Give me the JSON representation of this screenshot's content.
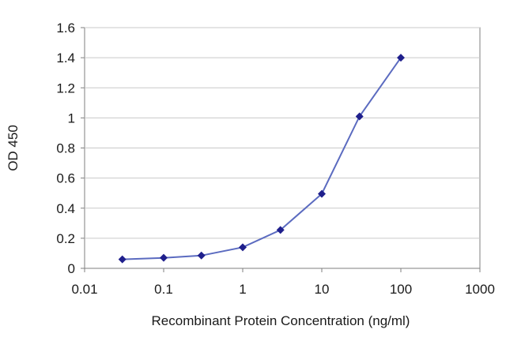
{
  "chart_data": {
    "type": "line",
    "title": "",
    "xlabel": "Recombinant Protein Concentration (ng/ml)",
    "ylabel": "OD 450",
    "x_scale": "log",
    "xlim": [
      0.01,
      1000
    ],
    "ylim": [
      0,
      1.6
    ],
    "x_ticks": [
      0.01,
      0.1,
      1,
      10,
      100,
      1000
    ],
    "x_tick_labels": [
      "0.01",
      "0.1",
      "1",
      "10",
      "100",
      "1000"
    ],
    "y_ticks": [
      0,
      0.2,
      0.4,
      0.6,
      0.8,
      1,
      1.2,
      1.4,
      1.6
    ],
    "y_tick_labels": [
      "0",
      "0.2",
      "0.4",
      "0.6",
      "0.8",
      "1",
      "1.2",
      "1.4",
      "1.6"
    ],
    "grid": "horizontal",
    "legend": "none",
    "series": [
      {
        "x": [
          0.03,
          0.1,
          0.3,
          1,
          3,
          10,
          30,
          100
        ],
        "y": [
          0.06,
          0.07,
          0.085,
          0.14,
          0.255,
          0.495,
          1.01,
          1.4
        ]
      }
    ],
    "colors": {
      "line": "#5b6bc0",
      "marker": "#1f1f8c",
      "grid": "#c9c9c9",
      "axis": "#7f7f7f"
    }
  }
}
